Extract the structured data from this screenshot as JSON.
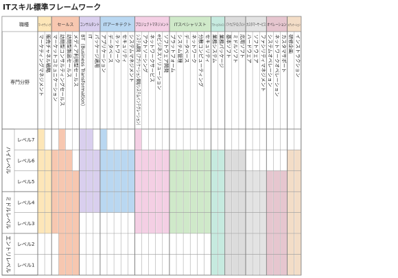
{
  "title": "ITスキル標準フレームワーク",
  "corner": {
    "top": "職種",
    "left": "専門分野"
  },
  "level_groups": [
    "ハイレベル",
    "ミドルレベル",
    "エントリレベル"
  ],
  "levels": [
    "レベル7",
    "レベル6",
    "レベル5",
    "レベル4",
    "レベル3",
    "レベル2",
    "レベル1"
  ],
  "chart_data": {
    "type": "table",
    "title": "ITスキル標準フレームワーク",
    "level_groups": [
      {
        "name": "ハイレベル",
        "levels": [
          "レベル7",
          "レベル6",
          "レベル5"
        ]
      },
      {
        "name": "ミドルレベル",
        "levels": [
          "レベル4",
          "レベル3"
        ]
      },
      {
        "name": "エントリレベル",
        "levels": [
          "レベル2",
          "レベル1"
        ]
      }
    ],
    "levels": [
      "レベル7",
      "レベル6",
      "レベル5",
      "レベル4",
      "レベル3",
      "レベル2",
      "レベル1"
    ],
    "categories": [
      {
        "name": "マーケティング",
        "color": "#fde6b8",
        "specialties": [
          {
            "name": "マーケティングマネジメント",
            "min": 3,
            "max": 7
          },
          {
            "name": "販売チャネル戦略",
            "min": 3,
            "max": 6
          }
        ]
      },
      {
        "name": "セールス",
        "color": "#f7c7b0",
        "specialties": [
          {
            "name": "マーケットコミュニケーション",
            "min": 3,
            "max": 6
          },
          {
            "name": "訪問型コンサルティングセールス",
            "min": 1,
            "max": 7
          },
          {
            "name": "訪問型製品セールス",
            "min": 1,
            "max": 6
          },
          {
            "name": "メディア利用型セールス",
            "min": 1,
            "max": 5
          }
        ]
      },
      {
        "name": "コンサルタント",
        "color": "#d9cfee",
        "specialties": [
          {
            "name": "BT（Business Transformation）",
            "min": 4,
            "max": 7
          },
          {
            "name": "IT",
            "min": 4,
            "max": 7
          },
          {
            "name": "パッケージ適用",
            "min": 4,
            "max": 6
          }
        ]
      },
      {
        "name": "ITアーキテクト",
        "color": "#b9d7f1",
        "specialties": [
          {
            "name": "アプリケーション",
            "min": 4,
            "max": 7
          },
          {
            "name": "データベース",
            "min": 4,
            "max": 6
          },
          {
            "name": "ネットワーク",
            "min": 4,
            "max": 6
          },
          {
            "name": "セキュリティ",
            "min": 4,
            "max": 6
          },
          {
            "name": "システムマネジメント",
            "min": 4,
            "max": 6
          }
        ]
      },
      {
        "name": "プロジェクトマネジメント",
        "color": "#f4cfe4",
        "specialties": [
          {
            "name": "システム開発（アプリケーション開発/システムインテグレーション）",
            "min": 3,
            "max": 7
          },
          {
            "name": "アウトソーシング",
            "min": 3,
            "max": 6
          },
          {
            "name": "ネットワークサービス",
            "min": 3,
            "max": 6
          },
          {
            "name": "eビジネスソリューション",
            "min": 3,
            "max": 6
          },
          {
            "name": "ソフトウェア開発",
            "min": 3,
            "max": 6
          }
        ]
      },
      {
        "name": "ITスペシャリスト",
        "color": "#cfe9c9",
        "specialties": [
          {
            "name": "プラットフォーム",
            "min": 3,
            "max": 6
          },
          {
            "name": "システム管理",
            "min": 3,
            "max": 6
          },
          {
            "name": "データベース",
            "min": 3,
            "max": 6
          },
          {
            "name": "ネットワーク",
            "min": 3,
            "max": 6
          },
          {
            "name": "分散コンピューティング",
            "min": 3,
            "max": 6
          },
          {
            "name": "セキュリティ",
            "min": 3,
            "max": 6
          }
        ]
      },
      {
        "name": "アプリケーションスペシャリスト",
        "color": "#c6eadf",
        "specialties": [
          {
            "name": "業務システム",
            "min": 1,
            "max": 6
          },
          {
            "name": "業務パッケージ",
            "min": 1,
            "max": 6
          }
        ]
      },
      {
        "name": "ソフトウェアデベロップメント",
        "color": "#dcdcdc",
        "specialties": [
          {
            "name": "基本ソフト",
            "min": 1,
            "max": 6
          },
          {
            "name": "ミドルソフト",
            "min": 1,
            "max": 6
          },
          {
            "name": "応用ソフト",
            "min": 1,
            "max": 6
          }
        ]
      },
      {
        "name": "カスタマーサービス",
        "color": "#e3e3e3",
        "specialties": [
          {
            "name": "ハードウェア",
            "min": 1,
            "max": 5
          },
          {
            "name": "ソフトウェア",
            "min": 1,
            "max": 5
          },
          {
            "name": "ファシリティマネジメント",
            "min": 1,
            "max": 5
          }
        ]
      },
      {
        "name": "オペレーション",
        "color": "#e6c6cf",
        "specialties": [
          {
            "name": "システムオペレーション",
            "min": 1,
            "max": 5
          },
          {
            "name": "ネットワークオペレーション",
            "min": 1,
            "max": 5
          },
          {
            "name": "カスタマサポート",
            "min": 1,
            "max": 5
          }
        ]
      },
      {
        "name": "エデュケーション",
        "color": "#f3ddc7",
        "specialties": [
          {
            "name": "研修企画",
            "min": 1,
            "max": 6
          },
          {
            "name": "インストラクション",
            "min": 1,
            "max": 6
          }
        ]
      }
    ]
  }
}
